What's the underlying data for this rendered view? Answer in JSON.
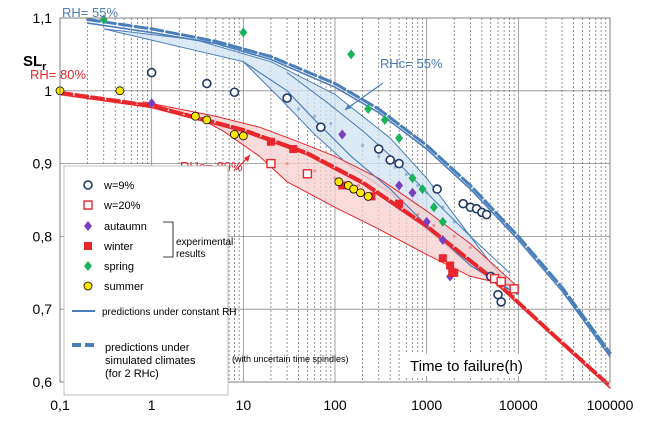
{
  "chart_data": {
    "type": "scatter",
    "title": "",
    "xlabel": "Time to failure(h)",
    "ylabel_main": "SL",
    "ylabel_sub": "r",
    "x_scale": "log",
    "xlim": [
      0.1,
      100000
    ],
    "ylim": [
      0.6,
      1.1
    ],
    "x_ticks": [
      {
        "value": 0.1,
        "label": "0,1"
      },
      {
        "value": 1,
        "label": "1"
      },
      {
        "value": 10,
        "label": "10"
      },
      {
        "value": 100,
        "label": "100"
      },
      {
        "value": 1000,
        "label": "1000"
      },
      {
        "value": 10000,
        "label": "10000"
      },
      {
        "value": 100000,
        "label": "100000"
      }
    ],
    "y_ticks": [
      {
        "value": 0.6,
        "label": "0,6"
      },
      {
        "value": 0.7,
        "label": "0,7"
      },
      {
        "value": 0.8,
        "label": "0,8"
      },
      {
        "value": 0.9,
        "label": "0,9"
      },
      {
        "value": 1.0,
        "label": "1"
      },
      {
        "value": 1.1,
        "label": "1,1"
      }
    ],
    "grid": {
      "vertical_minor_dashed": true,
      "horizontal": true
    },
    "colors": {
      "blue": "#4a7ebb",
      "red": "#e8262b",
      "blue_band": "#cfe3f1",
      "red_band": "#f6cfcd",
      "navy": "#1f3864",
      "purple": "#7a3fbf",
      "green": "#19b25a",
      "yellow": "#ffe600"
    },
    "band_blue": {
      "upper": [
        [
          0.3,
          1.085
        ],
        [
          3,
          1.07
        ],
        [
          20,
          1.04
        ],
        [
          100,
          0.995
        ],
        [
          400,
          0.935
        ],
        [
          1000,
          0.88
        ],
        [
          3000,
          0.8
        ],
        [
          6000,
          0.75
        ],
        [
          10000,
          0.72
        ]
      ],
      "lower": [
        [
          10,
          1.04
        ],
        [
          25,
          0.99
        ],
        [
          60,
          0.94
        ],
        [
          150,
          0.895
        ],
        [
          400,
          0.86
        ],
        [
          1000,
          0.81
        ],
        [
          3000,
          0.76
        ],
        [
          6000,
          0.735
        ],
        [
          10000,
          0.72
        ]
      ]
    },
    "band_red": {
      "upper": [
        [
          0.8,
          0.985
        ],
        [
          5,
          0.965
        ],
        [
          15,
          0.95
        ],
        [
          40,
          0.93
        ],
        [
          100,
          0.91
        ],
        [
          300,
          0.88
        ],
        [
          1000,
          0.835
        ],
        [
          3000,
          0.79
        ],
        [
          10000,
          0.73
        ]
      ],
      "lower": [
        [
          0.8,
          0.985
        ],
        [
          3,
          0.965
        ],
        [
          6,
          0.945
        ],
        [
          15,
          0.91
        ],
        [
          30,
          0.875
        ],
        [
          100,
          0.84
        ],
        [
          300,
          0.81
        ],
        [
          1000,
          0.775
        ],
        [
          3000,
          0.745
        ],
        [
          10000,
          0.73
        ]
      ]
    },
    "curves": [
      {
        "color": "blue",
        "style": "thick-dashed",
        "width": 3,
        "points": [
          [
            0.2,
            1.098
          ],
          [
            1,
            1.085
          ],
          [
            5,
            1.068
          ],
          [
            20,
            1.047
          ],
          [
            100,
            1.01
          ],
          [
            300,
            0.975
          ],
          [
            1000,
            0.925
          ],
          [
            3000,
            0.87
          ],
          [
            10000,
            0.8
          ],
          [
            30000,
            0.73
          ],
          [
            100000,
            0.64
          ]
        ]
      },
      {
        "color": "blue",
        "style": "solid",
        "width": 1.6,
        "points": [
          [
            0.2,
            1.093
          ],
          [
            1,
            1.08
          ],
          [
            5,
            1.065
          ],
          [
            20,
            1.043
          ],
          [
            100,
            1.005
          ],
          [
            300,
            0.97
          ],
          [
            1000,
            0.92
          ],
          [
            3000,
            0.865
          ],
          [
            10000,
            0.795
          ],
          [
            30000,
            0.725
          ],
          [
            100000,
            0.635
          ]
        ]
      },
      {
        "color": "blue",
        "style": "solid",
        "width": 1.2,
        "points": [
          [
            10,
            1.04
          ],
          [
            30,
            1.0
          ],
          [
            60,
            0.96
          ],
          [
            150,
            0.91
          ],
          [
            400,
            0.865
          ],
          [
            1000,
            0.815
          ],
          [
            3000,
            0.76
          ],
          [
            10000,
            0.72
          ]
        ]
      },
      {
        "color": "blue",
        "style": "solid",
        "width": 1.0,
        "points": [
          [
            30,
            1.025
          ],
          [
            80,
            0.985
          ],
          [
            200,
            0.945
          ],
          [
            500,
            0.9
          ],
          [
            1200,
            0.85
          ],
          [
            3000,
            0.8
          ],
          [
            8000,
            0.75
          ]
        ]
      },
      {
        "color": "red",
        "style": "thick-dashed",
        "width": 3,
        "points": [
          [
            0.1,
            0.998
          ],
          [
            1,
            0.98
          ],
          [
            10,
            0.947
          ],
          [
            50,
            0.915
          ],
          [
            200,
            0.875
          ],
          [
            1000,
            0.815
          ],
          [
            5000,
            0.745
          ],
          [
            20000,
            0.675
          ],
          [
            100000,
            0.595
          ]
        ]
      },
      {
        "color": "red",
        "style": "solid",
        "width": 1.6,
        "points": [
          [
            0.1,
            0.995
          ],
          [
            1,
            0.977
          ],
          [
            10,
            0.944
          ],
          [
            50,
            0.912
          ],
          [
            200,
            0.872
          ],
          [
            1000,
            0.812
          ],
          [
            5000,
            0.742
          ],
          [
            20000,
            0.672
          ],
          [
            100000,
            0.592
          ]
        ]
      }
    ],
    "series": [
      {
        "name": "w=9%",
        "marker": "open-circle",
        "color": "navy",
        "points": [
          [
            1,
            1.025
          ],
          [
            4,
            1.01
          ],
          [
            8,
            0.998
          ],
          [
            30,
            0.99
          ],
          [
            70,
            0.95
          ],
          [
            300,
            0.92
          ],
          [
            400,
            0.905
          ],
          [
            500,
            0.9
          ],
          [
            1300,
            0.865
          ],
          [
            2500,
            0.845
          ],
          [
            3000,
            0.84
          ],
          [
            3500,
            0.838
          ],
          [
            4000,
            0.833
          ],
          [
            4500,
            0.83
          ],
          [
            5000,
            0.745
          ],
          [
            6000,
            0.72
          ],
          [
            6500,
            0.71
          ]
        ]
      },
      {
        "name": "w=20%",
        "marker": "open-square",
        "color": "red",
        "points": [
          [
            20,
            0.9
          ],
          [
            50,
            0.886
          ],
          [
            5500,
            0.742
          ],
          [
            6500,
            0.738
          ],
          [
            9000,
            0.728
          ]
        ]
      },
      {
        "name": "autaumn",
        "marker": "diamond",
        "color": "purple",
        "points": [
          [
            1,
            0.983
          ],
          [
            120,
            0.94
          ],
          [
            500,
            0.87
          ],
          [
            700,
            0.86
          ],
          [
            1000,
            0.82
          ],
          [
            1500,
            0.795
          ],
          [
            1800,
            0.745
          ]
        ]
      },
      {
        "name": "winter",
        "marker": "filled-square",
        "color": "red",
        "points": [
          [
            20,
            0.93
          ],
          [
            35,
            0.92
          ],
          [
            120,
            0.87
          ],
          [
            250,
            0.855
          ],
          [
            500,
            0.845
          ],
          [
            1500,
            0.77
          ],
          [
            1800,
            0.76
          ],
          [
            1900,
            0.75
          ],
          [
            2000,
            0.75
          ]
        ]
      },
      {
        "name": "spring",
        "marker": "diamond",
        "color": "green",
        "points": [
          [
            0.3,
            1.098
          ],
          [
            10,
            1.08
          ],
          [
            150,
            1.05
          ],
          [
            230,
            0.975
          ],
          [
            350,
            0.96
          ],
          [
            500,
            0.935
          ],
          [
            700,
            0.88
          ],
          [
            900,
            0.865
          ],
          [
            1200,
            0.84
          ],
          [
            1500,
            0.82
          ]
        ]
      },
      {
        "name": "summer",
        "marker": "filled-circle",
        "color": "yellow",
        "points": [
          [
            0.1,
            1.0
          ],
          [
            0.45,
            1.0
          ],
          [
            3,
            0.965
          ],
          [
            4,
            0.96
          ],
          [
            8,
            0.94
          ],
          [
            10,
            0.938
          ],
          [
            110,
            0.875
          ],
          [
            140,
            0.87
          ],
          [
            160,
            0.865
          ],
          [
            190,
            0.86
          ],
          [
            230,
            0.855
          ]
        ]
      }
    ],
    "scatter_faint": {
      "blue_dots": [
        [
          40,
          0.975
        ],
        [
          60,
          0.965
        ],
        [
          90,
          0.955
        ],
        [
          120,
          0.94
        ],
        [
          200,
          0.925
        ],
        [
          300,
          0.91
        ],
        [
          450,
          0.895
        ],
        [
          600,
          0.885
        ],
        [
          800,
          0.87
        ],
        [
          1000,
          0.86
        ],
        [
          1500,
          0.84
        ],
        [
          2000,
          0.82
        ]
      ],
      "red_dots": [
        [
          30,
          0.9
        ],
        [
          60,
          0.89
        ],
        [
          100,
          0.88
        ],
        [
          180,
          0.87
        ],
        [
          300,
          0.86
        ],
        [
          500,
          0.845
        ],
        [
          800,
          0.83
        ],
        [
          1200,
          0.815
        ],
        [
          2000,
          0.8
        ],
        [
          3000,
          0.785
        ]
      ]
    },
    "annotations": [
      {
        "text": "RH= 55%",
        "color": "blue"
      },
      {
        "text": "RH= 80%",
        "color": "red"
      },
      {
        "text": "RHc= 55%",
        "color": "blue"
      },
      {
        "text": "RHc= 80%",
        "color": "red"
      }
    ],
    "legend": {
      "placement": "bottom-left",
      "entries": [
        "w=9%",
        "w=20%",
        "autaumn",
        "winter",
        "spring",
        "summer"
      ],
      "group_label_line1": "experimental",
      "group_label_line2": "results",
      "line_constant": "predictions under constant RH",
      "line_sim_1": "predictions under",
      "line_sim_2": "simulated climates",
      "line_sim_3": "(for 2 RHc)",
      "note": "(with uncertain time spindles)"
    }
  }
}
